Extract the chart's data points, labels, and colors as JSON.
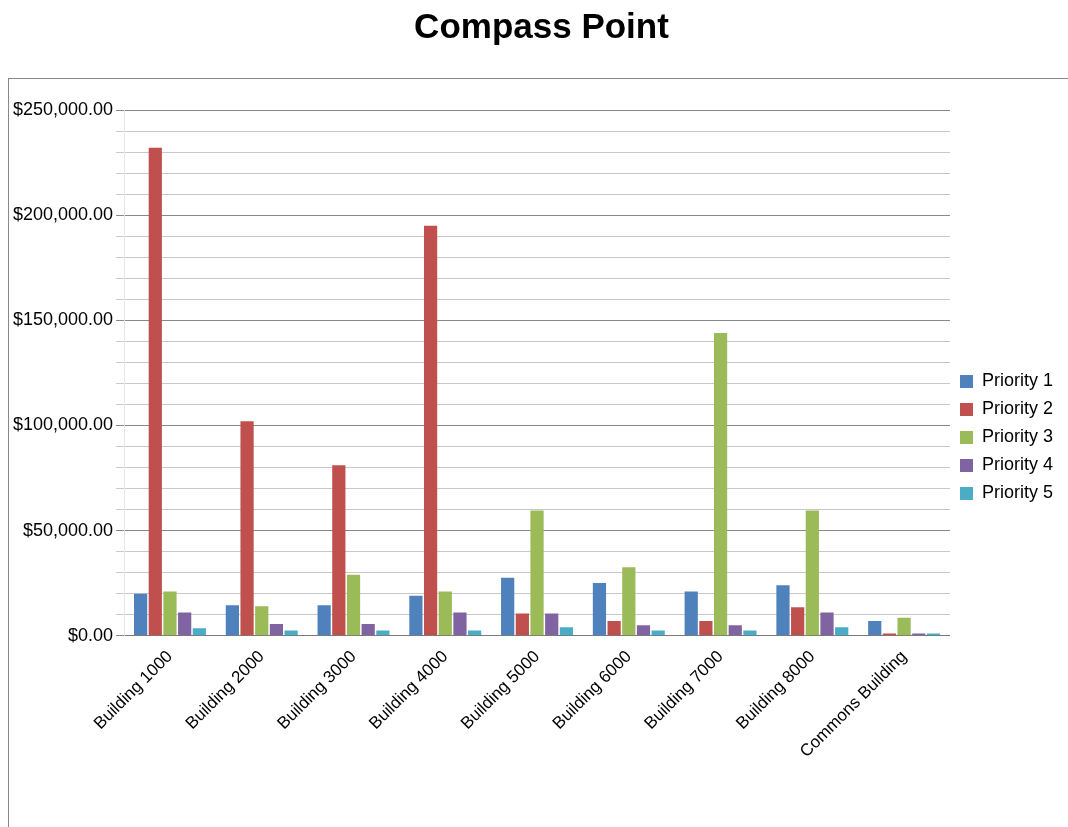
{
  "chart_data": {
    "type": "bar",
    "title": "Compass Point",
    "categories": [
      "Building 1000",
      "Building 2000",
      "Building 3000",
      "Building 4000",
      "Building 5000",
      "Building 6000",
      "Building 7000",
      "Building 8000",
      "Commons Building"
    ],
    "series": [
      {
        "name": "Priority 1",
        "color": "#4f81bd",
        "values": [
          20000,
          14500,
          14500,
          19000,
          27500,
          25000,
          21000,
          24000,
          7000
        ]
      },
      {
        "name": "Priority 2",
        "color": "#c0504d",
        "values": [
          232000,
          102000,
          81000,
          195000,
          10500,
          7000,
          7000,
          13500,
          1000
        ]
      },
      {
        "name": "Priority 3",
        "color": "#9bbb59",
        "values": [
          21000,
          14000,
          29000,
          21000,
          59500,
          32500,
          144000,
          59500,
          8500
        ]
      },
      {
        "name": "Priority 4",
        "color": "#8064a2",
        "values": [
          11000,
          5500,
          5500,
          11000,
          10500,
          5000,
          5000,
          11000,
          1000
        ]
      },
      {
        "name": "Priority 5",
        "color": "#4bacc6",
        "values": [
          3500,
          2500,
          2500,
          2500,
          4000,
          2500,
          2500,
          4000,
          1000
        ]
      }
    ],
    "ylim": [
      0,
      250000
    ],
    "yticks": [
      {
        "value": 0,
        "label": "$0.00"
      },
      {
        "value": 10000,
        "label": null
      },
      {
        "value": 20000,
        "label": null
      },
      {
        "value": 30000,
        "label": null
      },
      {
        "value": 40000,
        "label": null
      },
      {
        "value": 50000,
        "label": "$50,000.00"
      },
      {
        "value": 60000,
        "label": null
      },
      {
        "value": 70000,
        "label": null
      },
      {
        "value": 80000,
        "label": null
      },
      {
        "value": 90000,
        "label": null
      },
      {
        "value": 100000,
        "label": "$100,000.00"
      },
      {
        "value": 110000,
        "label": null
      },
      {
        "value": 120000,
        "label": null
      },
      {
        "value": 130000,
        "label": null
      },
      {
        "value": 140000,
        "label": null
      },
      {
        "value": 150000,
        "label": "$150,000.00"
      },
      {
        "value": 160000,
        "label": null
      },
      {
        "value": 170000,
        "label": null
      },
      {
        "value": 180000,
        "label": null
      },
      {
        "value": 190000,
        "label": null
      },
      {
        "value": 200000,
        "label": "$200,000.00"
      },
      {
        "value": 210000,
        "label": null
      },
      {
        "value": 220000,
        "label": null
      },
      {
        "value": 230000,
        "label": null
      },
      {
        "value": 240000,
        "label": null
      },
      {
        "value": 250000,
        "label": "$250,000.00"
      }
    ],
    "grid": "y",
    "legend": "right"
  }
}
